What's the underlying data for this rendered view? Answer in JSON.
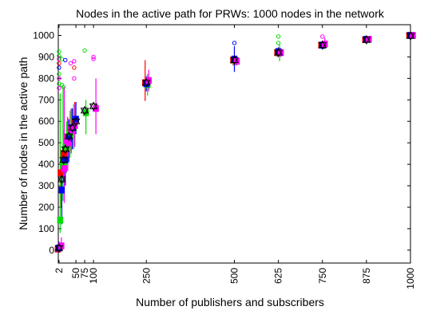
{
  "chart_data": {
    "type": "scatter",
    "title": "Nodes in the active path for PRWs: 1000 nodes in the network",
    "xlabel": "Number of publishers and subscribers",
    "ylabel": "Number of nodes in the active path",
    "xlim": [
      0,
      1000
    ],
    "ylim": [
      -60,
      1050
    ],
    "x_ticks": [
      2,
      50,
      75,
      100,
      250,
      500,
      625,
      750,
      875,
      1000
    ],
    "y_ticks": [
      0,
      100,
      200,
      300,
      400,
      500,
      600,
      700,
      800,
      900,
      1000
    ],
    "colors": {
      "red": "#ff0000",
      "green": "#00dd00",
      "blue": "#0000ff",
      "magenta": "#ff00ff",
      "black": "#000000"
    },
    "series": [
      {
        "color": "red",
        "points": [
          {
            "x": 2,
            "y": 5,
            "lo": 0,
            "hi": 15
          },
          {
            "x": 10,
            "y": 360,
            "lo": 200,
            "hi": 470
          },
          {
            "x": 20,
            "y": 450,
            "lo": 350,
            "hi": 560
          },
          {
            "x": 30,
            "y": 520,
            "lo": 420,
            "hi": 620
          },
          {
            "x": 40,
            "y": 560,
            "lo": 460,
            "hi": 660
          },
          {
            "x": 50,
            "y": 590,
            "lo": 490,
            "hi": 690
          },
          {
            "x": 250,
            "y": 780,
            "lo": 695,
            "hi": 885
          },
          {
            "x": 500,
            "y": 885,
            "lo": 860,
            "hi": 905
          },
          {
            "x": 625,
            "y": 920,
            "lo": 900,
            "hi": 940
          },
          {
            "x": 750,
            "y": 955,
            "lo": 940,
            "hi": 970
          },
          {
            "x": 875,
            "y": 980,
            "lo": 975,
            "hi": 985
          },
          {
            "x": 1000,
            "y": 1000,
            "lo": 998,
            "hi": 1000
          }
        ]
      },
      {
        "color": "green",
        "points": [
          {
            "x": 2,
            "y": 140,
            "lo": 80,
            "hi": 730
          },
          {
            "x": 10,
            "y": 400,
            "lo": 230,
            "hi": 760
          },
          {
            "x": 20,
            "y": 480,
            "lo": 360,
            "hi": 600
          },
          {
            "x": 30,
            "y": 540,
            "lo": 430,
            "hi": 650
          },
          {
            "x": 40,
            "y": 570,
            "lo": 470,
            "hi": 680
          },
          {
            "x": 75,
            "y": 640,
            "lo": 540,
            "hi": 700
          },
          {
            "x": 250,
            "y": 770,
            "lo": 720,
            "hi": 820
          },
          {
            "x": 500,
            "y": 880,
            "lo": 860,
            "hi": 900
          },
          {
            "x": 625,
            "y": 920,
            "lo": 880,
            "hi": 960
          },
          {
            "x": 750,
            "y": 955,
            "lo": 935,
            "hi": 975
          },
          {
            "x": 875,
            "y": 980,
            "lo": 970,
            "hi": 990
          },
          {
            "x": 1000,
            "y": 1000,
            "lo": 998,
            "hi": 1000
          }
        ]
      },
      {
        "color": "blue",
        "points": [
          {
            "x": 2,
            "y": 10,
            "lo": 0,
            "hi": 40
          },
          {
            "x": 10,
            "y": 280,
            "lo": 120,
            "hi": 450
          },
          {
            "x": 20,
            "y": 420,
            "lo": 300,
            "hi": 530
          },
          {
            "x": 30,
            "y": 520,
            "lo": 410,
            "hi": 610
          },
          {
            "x": 40,
            "y": 570,
            "lo": 470,
            "hi": 660
          },
          {
            "x": 50,
            "y": 610,
            "lo": 540,
            "hi": 690
          },
          {
            "x": 250,
            "y": 775,
            "lo": 740,
            "hi": 810
          },
          {
            "x": 500,
            "y": 890,
            "lo": 830,
            "hi": 950
          },
          {
            "x": 625,
            "y": 925,
            "lo": 905,
            "hi": 945
          },
          {
            "x": 750,
            "y": 955,
            "lo": 940,
            "hi": 970
          },
          {
            "x": 875,
            "y": 982,
            "lo": 975,
            "hi": 988
          },
          {
            "x": 1000,
            "y": 1000,
            "lo": 998,
            "hi": 1000
          }
        ]
      },
      {
        "color": "magenta",
        "points": [
          {
            "x": 2,
            "y": 20,
            "lo": 0,
            "hi": 60
          },
          {
            "x": 10,
            "y": 380,
            "lo": 220,
            "hi": 760
          },
          {
            "x": 20,
            "y": 500,
            "lo": 370,
            "hi": 610
          },
          {
            "x": 30,
            "y": 560,
            "lo": 450,
            "hi": 660
          },
          {
            "x": 40,
            "y": 580,
            "lo": 480,
            "hi": 680
          },
          {
            "x": 100,
            "y": 660,
            "lo": 540,
            "hi": 800
          },
          {
            "x": 250,
            "y": 790,
            "lo": 740,
            "hi": 840
          },
          {
            "x": 500,
            "y": 880,
            "lo": 860,
            "hi": 900
          },
          {
            "x": 625,
            "y": 920,
            "lo": 900,
            "hi": 940
          },
          {
            "x": 750,
            "y": 960,
            "lo": 940,
            "hi": 990
          },
          {
            "x": 875,
            "y": 982,
            "lo": 975,
            "hi": 990
          },
          {
            "x": 1000,
            "y": 1000,
            "lo": 998,
            "hi": 1000
          }
        ]
      },
      {
        "color": "black",
        "points": [
          {
            "x": 2,
            "y": 10
          },
          {
            "x": 10,
            "y": 330
          },
          {
            "x": 15,
            "y": 420
          },
          {
            "x": 20,
            "y": 470
          },
          {
            "x": 30,
            "y": 530
          },
          {
            "x": 40,
            "y": 570
          },
          {
            "x": 50,
            "y": 600
          },
          {
            "x": 75,
            "y": 650
          },
          {
            "x": 100,
            "y": 670
          },
          {
            "x": 250,
            "y": 780
          },
          {
            "x": 500,
            "y": 885
          },
          {
            "x": 625,
            "y": 920
          },
          {
            "x": 750,
            "y": 955
          },
          {
            "x": 875,
            "y": 980
          },
          {
            "x": 1000,
            "y": 998
          }
        ]
      }
    ],
    "outliers": [
      {
        "color": "green",
        "x": 2,
        "y": 925
      },
      {
        "color": "green",
        "x": 2,
        "y": 905
      },
      {
        "color": "magenta",
        "x": 2,
        "y": 890
      },
      {
        "color": "red",
        "x": 2,
        "y": 870
      },
      {
        "color": "blue",
        "x": 2,
        "y": 850
      },
      {
        "color": "green",
        "x": 2,
        "y": 820
      },
      {
        "color": "magenta",
        "x": 2,
        "y": 800
      },
      {
        "color": "green",
        "x": 2,
        "y": 775
      },
      {
        "color": "magenta",
        "x": 2,
        "y": 755
      },
      {
        "color": "green",
        "x": 10,
        "y": 890
      },
      {
        "color": "blue",
        "x": 20,
        "y": 885
      },
      {
        "color": "magenta",
        "x": 35,
        "y": 870
      },
      {
        "color": "magenta",
        "x": 45,
        "y": 880
      },
      {
        "color": "red",
        "x": 45,
        "y": 850
      },
      {
        "color": "magenta",
        "x": 45,
        "y": 800
      },
      {
        "color": "green",
        "x": 75,
        "y": 930
      },
      {
        "color": "magenta",
        "x": 100,
        "y": 900
      },
      {
        "color": "magenta",
        "x": 100,
        "y": 890
      },
      {
        "color": "blue",
        "x": 500,
        "y": 965
      },
      {
        "color": "green",
        "x": 625,
        "y": 995
      },
      {
        "color": "green",
        "x": 625,
        "y": 965
      },
      {
        "color": "magenta",
        "x": 750,
        "y": 995
      },
      {
        "color": "green",
        "x": 10,
        "y": 770
      },
      {
        "color": "green",
        "x": 15,
        "y": 760
      }
    ]
  }
}
